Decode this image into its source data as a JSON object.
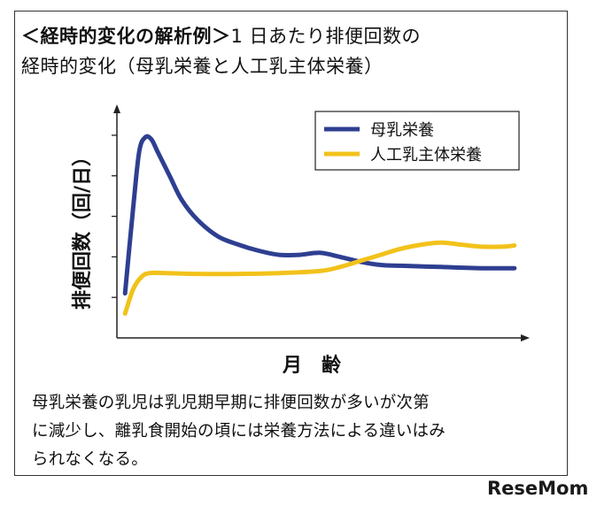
{
  "header": {
    "title_main": "＜経時的変化の解析例＞",
    "title_rest": "1 日あたり排便回数の",
    "title_line2": "経時的変化（母乳栄養と人工乳主体栄養）"
  },
  "chart_data": {
    "type": "line",
    "xlabel": "月　齢",
    "ylabel": "排便回数（回/日）",
    "legend_position": "top-right",
    "grid": false,
    "ylim": [
      0,
      5.5
    ],
    "xlim": [
      0,
      10
    ],
    "series": [
      {
        "name": "母乳栄養",
        "color": "#2e3f91",
        "points": [
          [
            0.2,
            1.1
          ],
          [
            0.4,
            3.2
          ],
          [
            0.55,
            4.6
          ],
          [
            0.7,
            4.95
          ],
          [
            0.85,
            4.9
          ],
          [
            1.0,
            4.6
          ],
          [
            1.3,
            4.0
          ],
          [
            1.6,
            3.4
          ],
          [
            2.0,
            2.9
          ],
          [
            2.5,
            2.5
          ],
          [
            3.0,
            2.3
          ],
          [
            3.5,
            2.15
          ],
          [
            4.0,
            2.05
          ],
          [
            4.5,
            2.05
          ],
          [
            5.0,
            2.1
          ],
          [
            5.5,
            2.0
          ],
          [
            6.0,
            1.88
          ],
          [
            6.5,
            1.8
          ],
          [
            7.0,
            1.78
          ],
          [
            8.0,
            1.75
          ],
          [
            9.0,
            1.72
          ],
          [
            9.8,
            1.72
          ]
        ]
      },
      {
        "name": "人工乳主体栄養",
        "color": "#f2c21b",
        "points": [
          [
            0.2,
            0.6
          ],
          [
            0.4,
            1.2
          ],
          [
            0.6,
            1.5
          ],
          [
            0.8,
            1.6
          ],
          [
            1.2,
            1.6
          ],
          [
            2.0,
            1.58
          ],
          [
            3.0,
            1.58
          ],
          [
            4.0,
            1.6
          ],
          [
            5.0,
            1.65
          ],
          [
            5.5,
            1.75
          ],
          [
            6.0,
            1.9
          ],
          [
            6.5,
            2.05
          ],
          [
            7.0,
            2.2
          ],
          [
            7.5,
            2.3
          ],
          [
            8.0,
            2.35
          ],
          [
            8.5,
            2.3
          ],
          [
            9.0,
            2.25
          ],
          [
            9.5,
            2.25
          ],
          [
            9.8,
            2.28
          ]
        ]
      }
    ]
  },
  "caption": {
    "line1": "母乳栄養の乳児は乳児期早期に排便回数が多いが次第",
    "line2": "に減少し、離乳食開始の頃には栄養方法による違いはみ",
    "line3": "られなくなる。"
  },
  "logo": {
    "text": "ReseMom"
  }
}
